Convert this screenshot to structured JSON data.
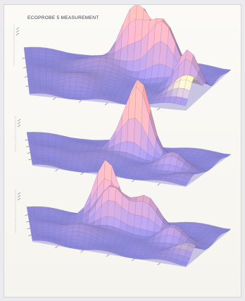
{
  "figure": {
    "title": "ECOPROBE 5 MEASUREMENT"
  },
  "colors": {
    "surface_base": "#8c89d8",
    "surface_edge": "#6d67c2",
    "peak": "#f3a6a3",
    "plateau": "#f3f0b8",
    "grid_line": "#5c58b8"
  },
  "chart_data": [
    {
      "type": "surface",
      "grid": {
        "nx": 28,
        "ny": 22
      },
      "zlim": [
        0,
        1
      ],
      "peaks": [
        {
          "x": 0.56,
          "y": 0.22,
          "height": 0.95,
          "spread": 0.07
        },
        {
          "x": 0.72,
          "y": 0.3,
          "height": 0.88,
          "spread": 0.07
        },
        {
          "x": 0.62,
          "y": 0.1,
          "height": 0.55,
          "spread": 0.06
        },
        {
          "x": 0.9,
          "y": 0.55,
          "height": 0.62,
          "spread": 0.06
        },
        {
          "x": 0.4,
          "y": 0.35,
          "height": 0.22,
          "spread": 0.1
        },
        {
          "x": 0.3,
          "y": 0.65,
          "height": 0.14,
          "spread": 0.12
        }
      ],
      "plateau": {
        "x": 0.96,
        "y": 0.82,
        "height": 0.42,
        "spread": 0.1
      }
    },
    {
      "type": "surface",
      "grid": {
        "nx": 28,
        "ny": 22
      },
      "zlim": [
        0,
        1
      ],
      "peaks": [
        {
          "x": 0.55,
          "y": 0.3,
          "height": 0.92,
          "spread": 0.07
        },
        {
          "x": 0.6,
          "y": 0.28,
          "height": 0.7,
          "spread": 0.05
        },
        {
          "x": 0.82,
          "y": 0.6,
          "height": 0.32,
          "spread": 0.07
        },
        {
          "x": 0.35,
          "y": 0.55,
          "height": 0.1,
          "spread": 0.12
        }
      ],
      "plateau": {
        "x": 0.95,
        "y": 0.85,
        "height": 0.12,
        "spread": 0.08
      }
    },
    {
      "type": "surface",
      "grid": {
        "nx": 28,
        "ny": 22
      },
      "zlim": [
        0,
        1
      ],
      "peaks": [
        {
          "x": 0.4,
          "y": 0.12,
          "height": 1.0,
          "spread": 0.06
        },
        {
          "x": 0.44,
          "y": 0.3,
          "height": 0.7,
          "spread": 0.07
        },
        {
          "x": 0.62,
          "y": 0.28,
          "height": 0.52,
          "spread": 0.07
        },
        {
          "x": 0.8,
          "y": 0.52,
          "height": 0.28,
          "spread": 0.07
        },
        {
          "x": 0.3,
          "y": 0.6,
          "height": 0.18,
          "spread": 0.1
        }
      ],
      "plateau": {
        "x": 0.94,
        "y": 0.8,
        "height": 0.22,
        "spread": 0.09
      }
    }
  ]
}
